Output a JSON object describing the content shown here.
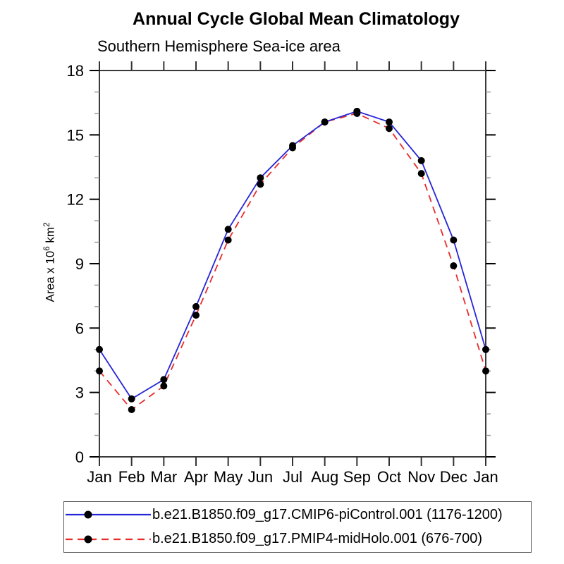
{
  "title": "Annual Cycle Global Mean Climatology",
  "subtitle": "Southern Hemisphere Sea-ice area",
  "y_axis": {
    "text_main": "Area x 10",
    "sup_exponent": "6",
    "text_unit": " km",
    "sup_unit": "2"
  },
  "legend": {
    "items": [
      {
        "label": "b.e21.B1850.f09_g17.CMIP6-piControl.001 (1176-1200)"
      },
      {
        "label": "b.e21.B1850.f09_g17.PMIP4-midHolo.001 (676-700)"
      }
    ]
  },
  "chart_data": {
    "type": "line",
    "title": "Annual Cycle Global Mean Climatology",
    "subtitle": "Southern Hemisphere Sea-ice area",
    "ylabel": "Area x 10^6 km^2",
    "xlabel": "",
    "categories": [
      "Jan",
      "Feb",
      "Mar",
      "Apr",
      "May",
      "Jun",
      "Jul",
      "Aug",
      "Sep",
      "Oct",
      "Nov",
      "Dec",
      "Jan"
    ],
    "series": [
      {
        "name": "b.e21.B1850.f09_g17.CMIP6-piControl.001 (1176-1200)",
        "color": "#2626d8",
        "dash": "solid",
        "values": [
          5.0,
          2.7,
          3.6,
          7.0,
          10.6,
          13.0,
          14.5,
          15.6,
          16.1,
          15.6,
          13.8,
          10.1,
          5.0
        ]
      },
      {
        "name": "b.e21.B1850.f09_g17.PMIP4-midHolo.001 (676-700)",
        "color": "#e82b2b",
        "dash": "dashed",
        "values": [
          4.0,
          2.2,
          3.3,
          6.6,
          10.1,
          12.7,
          14.4,
          15.6,
          16.0,
          15.3,
          13.2,
          8.9,
          4.0
        ]
      }
    ],
    "marker_color": "#000000",
    "ylim": [
      0,
      18
    ],
    "ytick_major": 3,
    "ytick_minor": 1,
    "grid": false,
    "legend_position": "bottom"
  }
}
